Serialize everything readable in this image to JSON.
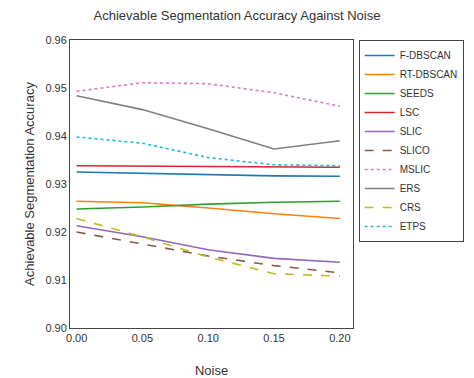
{
  "chart_data": {
    "type": "line",
    "title": "Achievable Segmentation Accuracy Against Noise",
    "x_label": "Noise",
    "y_label": "Achievable Segmentation Accuracy",
    "x": [
      0,
      0.05,
      0.1,
      0.15,
      0.2
    ],
    "xlim": [
      -0.005,
      0.21
    ],
    "ylim": [
      0.9,
      0.96
    ],
    "xticks": [
      {
        "value": 0,
        "label": "0.00"
      },
      0.05,
      {
        "value": 0.1,
        "label": "0.10"
      },
      0.15,
      {
        "value": 0.2,
        "label": "0.20"
      }
    ],
    "yticks": [
      {
        "value": 0.9,
        "label": "0.90"
      },
      0.91,
      0.92,
      0.93,
      0.94,
      0.95,
      0.96
    ],
    "grid": false,
    "legend": "upper right",
    "series": [
      {
        "name": "F-DBSCAN",
        "line_style": "solid",
        "values": [
          0.9325,
          0.9322,
          0.9319,
          0.9317,
          0.9316
        ]
      },
      {
        "name": "RT-DBSCAN",
        "line_style": "solid",
        "values": [
          0.9264,
          0.9261,
          0.925,
          0.9238,
          0.9228
        ]
      },
      {
        "name": "SEEDS",
        "line_style": "solid",
        "values": [
          0.9248,
          0.9252,
          0.9258,
          0.9262,
          0.9264
        ]
      },
      {
        "name": "LSC",
        "line_style": "solid",
        "values": [
          0.9338,
          0.9337,
          0.9336,
          0.9336,
          0.9335
        ]
      },
      {
        "name": "SLIC",
        "line_style": "solid",
        "values": [
          0.9213,
          0.919,
          0.9163,
          0.9145,
          0.9137
        ]
      },
      {
        "name": "SLICO",
        "line_style": "dashed",
        "values": [
          0.92,
          0.9175,
          0.915,
          0.913,
          0.9115
        ]
      },
      {
        "name": "MSLIC",
        "line_style": "dotted",
        "values": [
          0.9493,
          0.9511,
          0.9509,
          0.949,
          0.9462
        ]
      },
      {
        "name": "ERS",
        "line_style": "solid",
        "values": [
          0.9484,
          0.9455,
          0.9415,
          0.9373,
          0.939
        ]
      },
      {
        "name": "CRS",
        "line_style": "dashed",
        "values": [
          0.9228,
          0.919,
          0.9148,
          0.9113,
          0.9108
        ]
      },
      {
        "name": "ETPS",
        "line_style": "dotted",
        "values": [
          0.9398,
          0.9385,
          0.9355,
          0.934,
          0.9338
        ]
      }
    ]
  }
}
